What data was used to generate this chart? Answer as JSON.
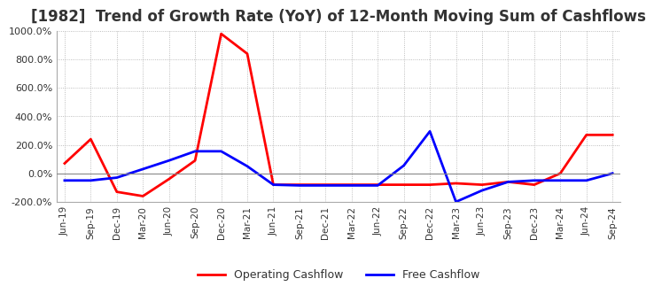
{
  "title": "[1982]  Trend of Growth Rate (YoY) of 12-Month Moving Sum of Cashflows",
  "x_labels": [
    "Jun-19",
    "Sep-19",
    "Dec-19",
    "Mar-20",
    "Jun-20",
    "Sep-20",
    "Dec-20",
    "Mar-21",
    "Jun-21",
    "Sep-21",
    "Dec-21",
    "Mar-22",
    "Jun-22",
    "Sep-22",
    "Dec-22",
    "Mar-23",
    "Jun-23",
    "Sep-23",
    "Dec-23",
    "Mar-24",
    "Jun-24",
    "Sep-24"
  ],
  "operating_cashflow": [
    70,
    240,
    -130,
    -160,
    -40,
    90,
    980,
    840,
    -80,
    -80,
    -80,
    -80,
    -80,
    -80,
    -80,
    -70,
    -80,
    -60,
    -80,
    0,
    270,
    270
  ],
  "free_cashflow": [
    -50,
    -50,
    -30,
    30,
    90,
    155,
    155,
    50,
    -80,
    -85,
    -85,
    -85,
    -85,
    55,
    295,
    -200,
    -120,
    -60,
    -50,
    -50,
    -50,
    0
  ],
  "operating_color": "#ff0000",
  "free_color": "#0000ff",
  "ylim_min": -200,
  "ylim_max": 1000,
  "yticks": [
    -200,
    0,
    200,
    400,
    600,
    800,
    1000
  ],
  "grid_color": "#aaaaaa",
  "background_color": "#ffffff",
  "title_fontsize": 12,
  "legend_labels": [
    "Operating Cashflow",
    "Free Cashflow"
  ],
  "line_width": 2.0
}
